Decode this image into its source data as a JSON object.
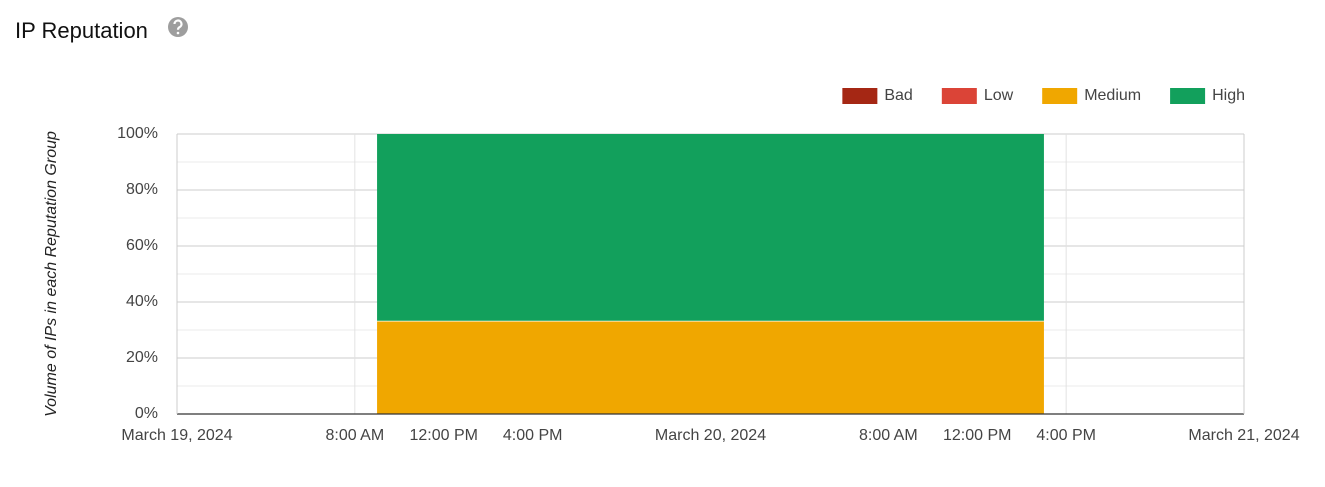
{
  "chart_data": {
    "type": "stacked-area",
    "title": "IP Reputation",
    "ylabel": "Volume of IPs in each Reputation Group",
    "x": [
      "2024-03-19T09:00",
      "2024-03-20T15:00"
    ],
    "series": [
      {
        "name": "Bad",
        "color": "#a52714",
        "values": [
          0,
          0
        ]
      },
      {
        "name": "Low",
        "color": "#db4437",
        "values": [
          0,
          0
        ]
      },
      {
        "name": "Medium",
        "color": "#f0a700",
        "values": [
          33.3,
          33.3
        ]
      },
      {
        "name": "High",
        "color": "#12a05c",
        "values": [
          66.7,
          66.7
        ]
      }
    ],
    "xlim": [
      "2024-03-19T00:00",
      "2024-03-21T00:00"
    ],
    "xticks": [
      {
        "value": "2024-03-19T00:00",
        "label": "March 19, 2024"
      },
      {
        "value": "2024-03-19T08:00",
        "label": "8:00 AM"
      },
      {
        "value": "2024-03-19T12:00",
        "label": "12:00 PM"
      },
      {
        "value": "2024-03-19T16:00",
        "label": "4:00 PM"
      },
      {
        "value": "2024-03-20T00:00",
        "label": "March 20, 2024"
      },
      {
        "value": "2024-03-20T08:00",
        "label": "8:00 AM"
      },
      {
        "value": "2024-03-20T12:00",
        "label": "12:00 PM"
      },
      {
        "value": "2024-03-20T16:00",
        "label": "4:00 PM"
      },
      {
        "value": "2024-03-21T00:00",
        "label": "March 21, 2024"
      }
    ],
    "ylim": [
      0,
      100
    ],
    "yticks": [
      {
        "value": 0,
        "label": "0%"
      },
      {
        "value": 20,
        "label": "20%"
      },
      {
        "value": 40,
        "label": "40%"
      },
      {
        "value": 60,
        "label": "60%"
      },
      {
        "value": 80,
        "label": "80%"
      },
      {
        "value": 100,
        "label": "100%"
      }
    ],
    "grid": true,
    "minor_grid": true,
    "legend": "top-right"
  }
}
